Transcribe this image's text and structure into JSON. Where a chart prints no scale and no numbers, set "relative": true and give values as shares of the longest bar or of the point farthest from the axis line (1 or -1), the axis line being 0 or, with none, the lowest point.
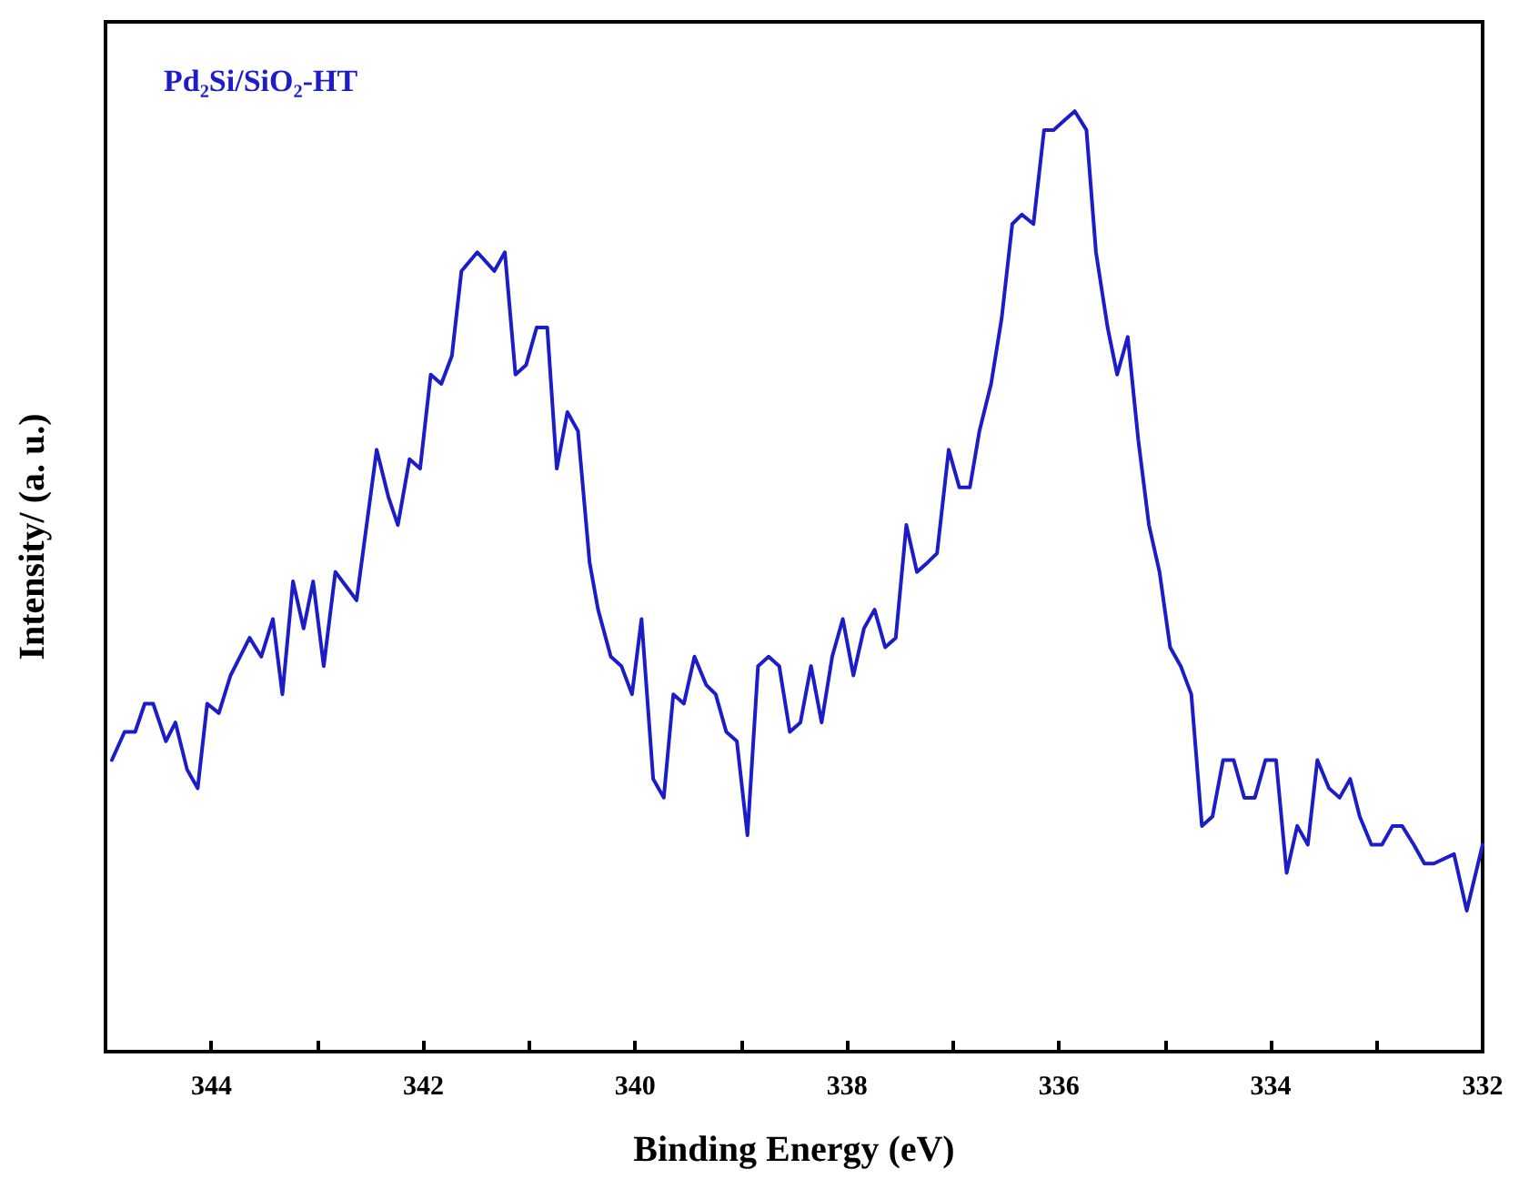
{
  "chart_data": {
    "type": "line",
    "xlabel": "Binding Energy (eV)",
    "ylabel": "Intensity/ (a. u.)",
    "annotations": [
      "Pd₂Si/SiO₂-HT"
    ],
    "relative": true,
    "grid": false,
    "marker": "none",
    "line_style": "solid",
    "xlim": [
      345,
      332
    ],
    "xticks": [
      344,
      {
        "value": 343,
        "label": null
      },
      342,
      {
        "value": 341,
        "label": null
      },
      340,
      {
        "value": 339,
        "label": null
      },
      338,
      {
        "value": 337,
        "label": null
      },
      336,
      {
        "value": 335,
        "label": null
      },
      334,
      {
        "value": 333,
        "label": null
      },
      332
    ],
    "series": [
      {
        "color": "#1c1cc8",
        "x": [
          344.94,
          344.82,
          344.72,
          344.63,
          344.55,
          344.43,
          344.34,
          344.23,
          344.13,
          344.04,
          343.93,
          343.82,
          343.64,
          343.53,
          343.42,
          343.33,
          343.23,
          343.13,
          343.04,
          342.94,
          342.83,
          342.63,
          342.44,
          342.33,
          342.24,
          342.13,
          342.03,
          341.93,
          341.83,
          341.73,
          341.64,
          341.49,
          341.33,
          341.23,
          341.13,
          341.03,
          340.93,
          340.83,
          340.74,
          340.64,
          340.54,
          340.43,
          340.35,
          340.23,
          340.13,
          340.03,
          339.94,
          339.83,
          339.73,
          339.64,
          339.54,
          339.44,
          339.33,
          339.24,
          339.14,
          339.04,
          338.94,
          338.84,
          338.74,
          338.64,
          338.54,
          338.44,
          338.34,
          338.24,
          338.14,
          338.04,
          337.94,
          337.84,
          337.74,
          337.64,
          337.54,
          337.44,
          337.34,
          337.24,
          337.15,
          337.04,
          336.94,
          336.84,
          336.75,
          336.64,
          336.54,
          336.44,
          336.35,
          336.24,
          336.14,
          336.05,
          335.95,
          335.85,
          335.74,
          335.65,
          335.54,
          335.45,
          335.35,
          335.25,
          335.15,
          335.05,
          334.95,
          334.85,
          334.75,
          334.65,
          334.55,
          334.45,
          334.35,
          334.25,
          334.15,
          334.05,
          333.95,
          333.85,
          333.75,
          333.65,
          333.56,
          333.45,
          333.35,
          333.25,
          333.16,
          333.05,
          332.95,
          332.85,
          332.76,
          332.65,
          332.55,
          332.46,
          332.27,
          332.15,
          332.0
        ],
        "values": [
          0.31,
          0.34,
          0.34,
          0.37,
          0.37,
          0.33,
          0.35,
          0.3,
          0.28,
          0.37,
          0.36,
          0.4,
          0.44,
          0.42,
          0.46,
          0.38,
          0.5,
          0.45,
          0.5,
          0.41,
          0.51,
          0.48,
          0.64,
          0.59,
          0.56,
          0.63,
          0.62,
          0.72,
          0.71,
          0.74,
          0.83,
          0.85,
          0.83,
          0.85,
          0.72,
          0.73,
          0.77,
          0.77,
          0.62,
          0.68,
          0.66,
          0.52,
          0.47,
          0.42,
          0.41,
          0.38,
          0.46,
          0.29,
          0.27,
          0.38,
          0.37,
          0.42,
          0.39,
          0.38,
          0.34,
          0.33,
          0.23,
          0.41,
          0.42,
          0.41,
          0.34,
          0.35,
          0.41,
          0.35,
          0.42,
          0.46,
          0.4,
          0.45,
          0.47,
          0.43,
          0.44,
          0.56,
          0.51,
          0.52,
          0.53,
          0.64,
          0.6,
          0.6,
          0.66,
          0.71,
          0.78,
          0.88,
          0.89,
          0.88,
          0.98,
          0.98,
          0.99,
          1.0,
          0.98,
          0.85,
          0.77,
          0.72,
          0.76,
          0.65,
          0.56,
          0.51,
          0.43,
          0.41,
          0.38,
          0.24,
          0.25,
          0.31,
          0.31,
          0.27,
          0.27,
          0.31,
          0.31,
          0.19,
          0.24,
          0.22,
          0.31,
          0.28,
          0.27,
          0.29,
          0.25,
          0.22,
          0.22,
          0.24,
          0.24,
          0.22,
          0.2,
          0.2,
          0.21,
          0.15,
          0.22
        ]
      }
    ]
  }
}
